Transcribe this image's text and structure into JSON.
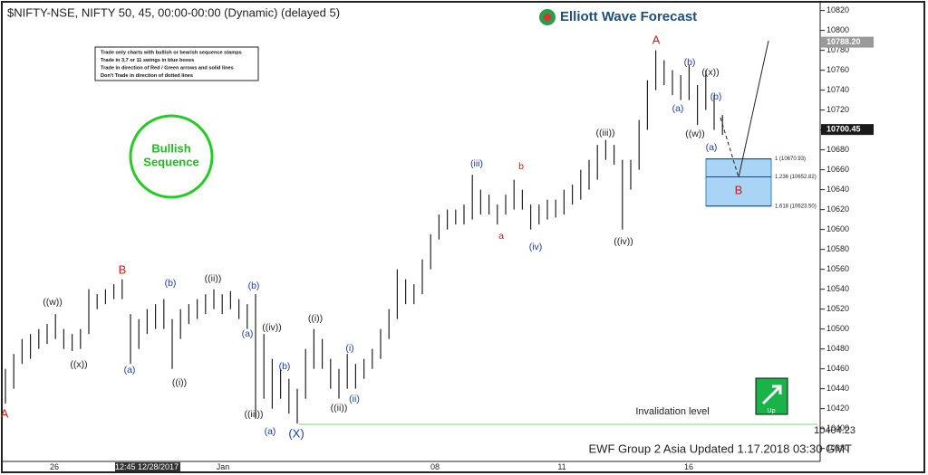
{
  "chart_data": {
    "type": "ohlc",
    "title": "$NIFTY-NSE, NIFTY 50, 45, 00:00-00:00 (Dynamic) (delayed 5)",
    "brand": "Elliott Wave Forecast",
    "footer": "EWF Group 2 Asia Updated 1.17.2018 03:30 GMT",
    "rules": [
      "Trade only charts with bullish or bearish sequence stamps",
      "Trade in 3,7 or 11 swings in blue boxes",
      "Trade in direction of Red / Green arrows and solid lines",
      "Don't Trade in direction of dotted lines"
    ],
    "sequence_stamp": [
      "Bullish",
      "Sequence"
    ],
    "signal": "Up",
    "x_labels": [
      "26",
      "12:45 12/28/2017",
      "Jan",
      "08",
      "11",
      "16"
    ],
    "color": "#222222",
    "high": [
      10460,
      10475,
      10490,
      10495,
      10500,
      10505,
      10515,
      10500,
      10495,
      10500,
      10540,
      10535,
      10540,
      10545,
      10550,
      10515,
      10510,
      10520,
      10525,
      10530,
      10510,
      10520,
      10525,
      10530,
      10535,
      10540,
      10535,
      10538,
      10530,
      10525,
      10535,
      10495,
      10470,
      10460,
      10450,
      10440,
      10480,
      10500,
      10490,
      10470,
      10460,
      10475,
      10465,
      10470,
      10480,
      10500,
      10520,
      10560,
      10550,
      10545,
      10570,
      10595,
      10615,
      10620,
      10620,
      10625,
      10655,
      10640,
      10635,
      10625,
      10635,
      10650,
      10640,
      10625,
      10625,
      10630,
      10630,
      10640,
      10645,
      10660,
      10670,
      10685,
      10690,
      10685,
      10670,
      10670,
      10710,
      10750,
      10780,
      10770,
      10760,
      10755,
      10765,
      10745,
      10760,
      10735,
      10715
    ],
    "low": [
      10425,
      10440,
      10465,
      10470,
      10480,
      10485,
      10490,
      10480,
      10478,
      10480,
      10495,
      10520,
      10525,
      10530,
      10530,
      10465,
      10480,
      10495,
      10500,
      10500,
      10460,
      10490,
      10505,
      10510,
      10515,
      10520,
      10515,
      10520,
      10510,
      10500,
      10410,
      10430,
      10420,
      10430,
      10415,
      10405,
      10430,
      10460,
      10460,
      10440,
      10430,
      10440,
      10440,
      10450,
      10460,
      10470,
      10490,
      10510,
      10525,
      10525,
      10535,
      10560,
      10590,
      10600,
      10605,
      10605,
      10610,
      10615,
      10615,
      10605,
      10615,
      10620,
      10620,
      10600,
      10605,
      10610,
      10612,
      10615,
      10625,
      10630,
      10640,
      10650,
      10670,
      10665,
      10600,
      10640,
      10660,
      10700,
      10740,
      10745,
      10735,
      10730,
      10730,
      10705,
      10720,
      10700,
      10695
    ],
    "ylim": [
      10367,
      10826
    ],
    "yticks": [
      10380,
      10400,
      10420,
      10440,
      10460,
      10480,
      10500,
      10520,
      10540,
      10560,
      10580,
      10600,
      10620,
      10640,
      10660,
      10680,
      10700,
      10720,
      10740,
      10760,
      10780,
      10800,
      10820
    ],
    "price_tags": [
      {
        "value": 10788.2,
        "label": "10788.20",
        "color": "#9a9a9a"
      },
      {
        "value": 10700.45,
        "label": "10700.45",
        "color": "#1a1a1a"
      }
    ],
    "invalidation": {
      "value": 10404.23,
      "label": "10404.23",
      "text": "Invalidation level",
      "color": "#7fd17f"
    },
    "fib_levels": [
      {
        "value": 10670.93,
        "label": "1 (10670.93)"
      },
      {
        "value": 10652.82,
        "label": "1.236 (10652.82)"
      },
      {
        "value": 10623.5,
        "label": "1.618 (10623.50)"
      }
    ],
    "wave_labels": [
      {
        "text": "A",
        "color": "#cc1a1a"
      },
      {
        "text": "((w))",
        "color": "#222222"
      },
      {
        "text": "((x))",
        "color": "#222222"
      },
      {
        "text": "B",
        "color": "#cc1a1a"
      },
      {
        "text": "(a)",
        "color": "#1a3fa0"
      },
      {
        "text": "(b)",
        "color": "#1a3fa0"
      },
      {
        "text": "((i))",
        "color": "#222222"
      },
      {
        "text": "((ii))",
        "color": "#222222"
      },
      {
        "text": "(b)",
        "color": "#1a3fa0"
      },
      {
        "text": "(a)",
        "color": "#1a3fa0"
      },
      {
        "text": "((iii))",
        "color": "#222222"
      },
      {
        "text": "((iv))",
        "color": "#222222"
      },
      {
        "text": "(b)",
        "color": "#1a3fa0"
      },
      {
        "text": "(a)",
        "color": "#1a3fa0"
      },
      {
        "text": "(X)",
        "color": "#1a3fa0"
      },
      {
        "text": "((i))",
        "color": "#222222"
      },
      {
        "text": "(i)",
        "color": "#1a3fa0"
      },
      {
        "text": "(ii)",
        "color": "#1a3fa0"
      },
      {
        "text": "((ii))",
        "color": "#222222"
      },
      {
        "text": "(iii)",
        "color": "#1a3fa0"
      },
      {
        "text": "b",
        "color": "#cc1a1a"
      },
      {
        "text": "a",
        "color": "#cc1a1a"
      },
      {
        "text": "(iv)",
        "color": "#1a3fa0"
      },
      {
        "text": "((iii))",
        "color": "#222222"
      },
      {
        "text": "((iv))",
        "color": "#222222"
      },
      {
        "text": "A",
        "color": "#cc1a1a"
      },
      {
        "text": "(b)",
        "color": "#1a3fa0"
      },
      {
        "text": "((x))",
        "color": "#222222"
      },
      {
        "text": "(a)",
        "color": "#1a3fa0"
      },
      {
        "text": "(b)",
        "color": "#1a3fa0"
      },
      {
        "text": "((w))",
        "color": "#222222"
      },
      {
        "text": "(a)",
        "color": "#1a3fa0"
      },
      {
        "text": "B",
        "color": "#cc1a1a"
      }
    ]
  }
}
